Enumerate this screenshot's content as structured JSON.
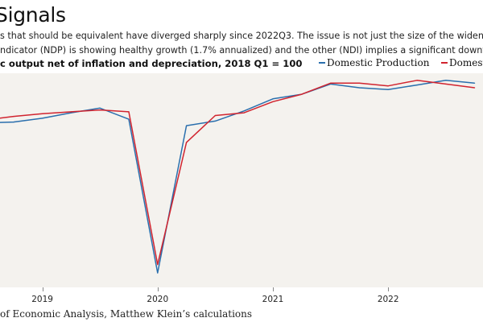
{
  "title": "Signals",
  "subtitle_line1": "s that should be equivalent have diverged sharply since 2022Q3. The issue is not just the size of the widening g",
  "subtitle_line2": "ndicator (NDP) is showing healthy growth (1.7% annualized) and the other (NDI) implies a significant downturn",
  "source": "of Economic Analysis, Matthew Klein’s calculations",
  "chart_data": {
    "type": "line",
    "ylabel": "c output net of inflation and depreciation, 2018 Q1 = 100",
    "legend_position": "top-right",
    "grid": false,
    "x": [
      "2018Q3",
      "2018Q4",
      "2019Q1",
      "2019Q2",
      "2019Q3",
      "2019Q4",
      "2020Q1",
      "2020Q2",
      "2020Q3",
      "2020Q4",
      "2021Q1",
      "2021Q2",
      "2021Q3",
      "2021Q4",
      "2022Q1",
      "2022Q2",
      "2022Q3",
      "2022Q4"
    ],
    "x_tick_labels": [
      "2019",
      "2020",
      "2021",
      "2022"
    ],
    "x_tick_positions": [
      "2019Q1",
      "2020Q1",
      "2021Q1",
      "2022Q1"
    ],
    "ylim": [
      84,
      104
    ],
    "series": [
      {
        "name": "Domestic Production",
        "color": "#2a6fad",
        "values": [
          100.2,
          100.3,
          100.7,
          101.3,
          101.8,
          100.6,
          84.0,
          99.9,
          100.4,
          101.5,
          102.8,
          103.3,
          104.4,
          104.0,
          103.8,
          104.3,
          104.8,
          104.5
        ]
      },
      {
        "name": "Domestic",
        "color": "#d1242f",
        "values": [
          100.5,
          100.9,
          101.2,
          101.4,
          101.6,
          101.4,
          84.9,
          98.1,
          101.0,
          101.3,
          102.5,
          103.3,
          104.5,
          104.5,
          104.2,
          104.8,
          104.4,
          104.0
        ]
      }
    ]
  }
}
